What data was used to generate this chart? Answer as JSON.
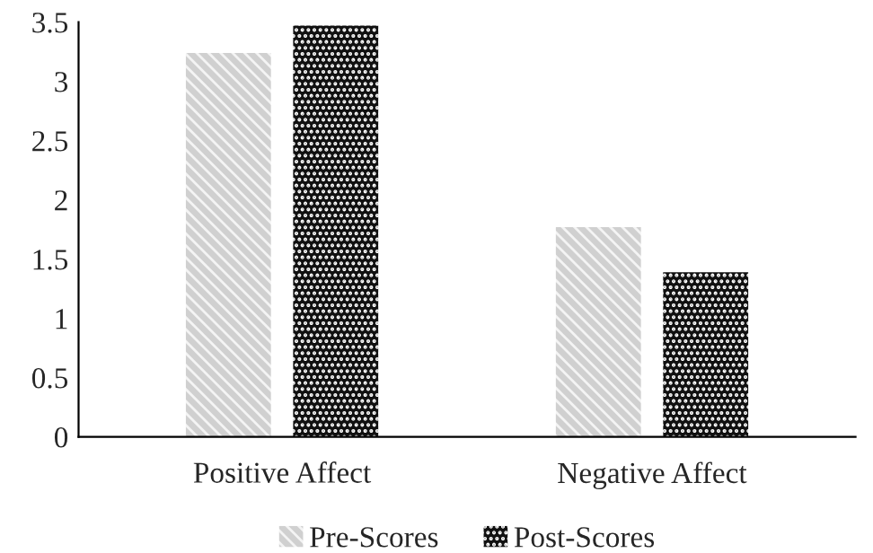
{
  "chart_data": {
    "type": "bar",
    "categories": [
      "Positive Affect",
      "Negative Affect"
    ],
    "series": [
      {
        "name": "Pre-Scores",
        "color": "#d0d0d0",
        "values": [
          3.24,
          1.77
        ]
      },
      {
        "name": "Post-Scores",
        "color": "#111111",
        "values": [
          3.47,
          1.39
        ]
      }
    ],
    "ylim": [
      0,
      3.5
    ],
    "yticks": [
      0,
      0.5,
      1,
      1.5,
      2,
      2.5,
      3,
      3.5
    ],
    "grid": false,
    "legend": "bottom"
  }
}
